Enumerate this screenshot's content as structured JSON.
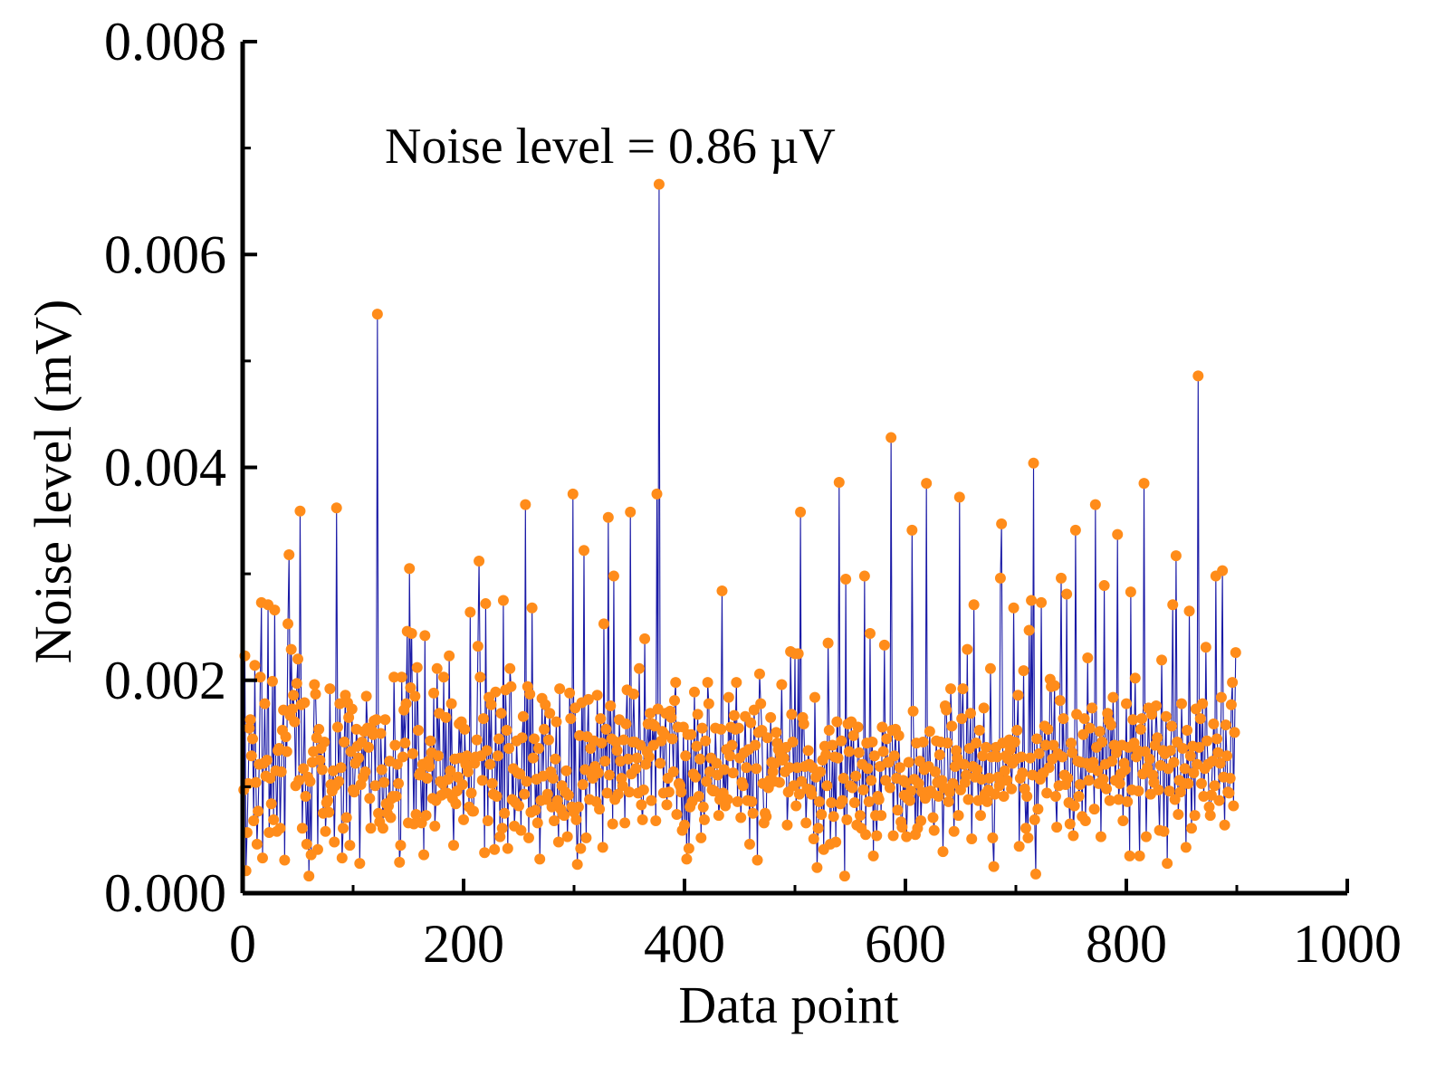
{
  "colors": {
    "line": "#1a1aa6",
    "marker": "#ff8c1a",
    "axis": "#000000"
  },
  "chart_data": {
    "type": "line",
    "title": "",
    "xlabel": "Data point",
    "ylabel": "Noise level (mV)",
    "xlim": [
      0,
      1000
    ],
    "ylim": [
      0,
      0.008
    ],
    "grid": false,
    "legend": "none",
    "x_ticks": [
      0,
      200,
      400,
      600,
      800,
      1000
    ],
    "x_tick_labels": [
      "0",
      "200",
      "400",
      "600",
      "800",
      "1000"
    ],
    "y_ticks": [
      0,
      0.002,
      0.004,
      0.006,
      0.008
    ],
    "y_tick_labels": [
      "0.000",
      "0.002",
      "0.004",
      "0.006",
      "0.008"
    ],
    "annotation": "Noise level = 0.86 µV",
    "series": [
      {
        "name": "Noise level",
        "x_start": 1,
        "x_step": 1,
        "y": [
          0.00097,
          0.00223,
          0.00021,
          0.00057,
          0.00103,
          0.00155,
          0.00163,
          0.00129,
          0.00145,
          0.00068,
          0.00214,
          0.00104,
          0.00046,
          0.00077,
          0.00121,
          0.00203,
          0.00273,
          0.00033,
          0.00122,
          0.00178,
          0.0011,
          0.00125,
          0.00271,
          0.00057,
          0.00108,
          0.00084,
          0.00199,
          0.00069,
          0.00266,
          0.00115,
          0.00058,
          0.00134,
          0.00136,
          0.00061,
          0.00114,
          0.00153,
          0.00172,
          0.00031,
          0.00147,
          0.00133,
          0.00253,
          0.00318,
          0.00167,
          0.00229,
          0.00173,
          0.00186,
          0.00161,
          0.00101,
          0.00197,
          0.0022,
          0.00106,
          0.00359,
          0.00177,
          0.00061,
          0.00117,
          0.00179,
          0.00091,
          0.00046,
          0.00109,
          0.00016,
          0.00105,
          0.00036,
          0.00123,
          0.00133,
          0.00196,
          0.00187,
          0.00146,
          0.00041,
          0.00154,
          0.00125,
          0.00136,
          0.00116,
          0.00075,
          0.00142,
          0.00058,
          0.00085,
          0.00087,
          0.00076,
          0.00192,
          0.00102,
          0.00096,
          0.00115,
          0.00048,
          0.00101,
          0.00362,
          0.00156,
          0.00105,
          0.00178,
          0.00118,
          0.00033,
          0.00061,
          0.00142,
          0.00186,
          0.00071,
          0.00179,
          0.00165,
          0.00045,
          0.00133,
          0.00173,
          0.00097,
          0.00095,
          0.00122,
          0.00154,
          0.00138,
          0.00127,
          0.00028,
          0.00102,
          0.00142,
          0.00109,
          0.00152,
          0.00114,
          0.00185,
          0.00155,
          0.00137,
          0.00089,
          0.00061,
          0.00153,
          0.00149,
          0.00162,
          0.00101,
          0.00163,
          0.00544,
          0.00075,
          0.00067,
          0.0015,
          0.00116,
          0.00061,
          0.00104,
          0.00163,
          0.00084,
          0.00075,
          0.00082,
          0.00124,
          0.00071,
          0.00089,
          0.00091,
          0.00203,
          0.00139,
          0.00091,
          0.00121,
          0.00103,
          0.00029,
          0.00045,
          0.00203,
          0.00128,
          0.00172,
          0.00141,
          0.00178,
          0.00246,
          0.00066,
          0.00305,
          0.00193,
          0.00244,
          0.00131,
          0.00065,
          0.00185,
          0.00074,
          0.00212,
          0.00153,
          0.00111,
          0.00113,
          0.00066,
          0.00121,
          0.00036,
          0.00242,
          0.00073,
          0.00108,
          0.00124,
          0.00119,
          0.00143,
          0.00132,
          0.00089,
          0.00188,
          0.00063,
          0.00087,
          0.00211,
          0.00129,
          0.00169,
          0.00105,
          0.00092,
          0.00103,
          0.00203,
          0.00094,
          0.00165,
          0.00094,
          0.00107,
          0.00223,
          0.00115,
          0.00178,
          0.00089,
          0.00045,
          0.00126,
          0.00084,
          0.00096,
          0.00109,
          0.00159,
          0.00127,
          0.00161,
          0.00102,
          0.00069,
          0.00154,
          0.00121,
          0.00129,
          0.00114,
          0.00081,
          0.00264,
          0.00094,
          0.00077,
          0.00077,
          0.00122,
          0.00128,
          0.00144,
          0.00232,
          0.00312,
          0.00203,
          0.00129,
          0.00106,
          0.00164,
          0.00038,
          0.00272,
          0.00134,
          0.00068,
          0.00184,
          0.00121,
          0.00177,
          0.00103,
          0.00093,
          0.00041,
          0.00189,
          0.00091,
          0.00129,
          0.00145,
          0.00053,
          0.00169,
          0.00061,
          0.00275,
          0.00075,
          0.00191,
          0.00153,
          0.00042,
          0.00136,
          0.00211,
          0.00194,
          0.00088,
          0.00117,
          0.00063,
          0.00085,
          0.00143,
          0.00113,
          0.00082,
          0.00112,
          0.00059,
          0.00146,
          0.00166,
          0.00093,
          0.00365,
          0.00105,
          0.00194,
          0.00052,
          0.00187,
          0.00076,
          0.00268,
          0.00127,
          0.00145,
          0.00078,
          0.00107,
          0.00066,
          0.00136,
          0.00032,
          0.00087,
          0.00183,
          0.0011,
          0.00154,
          0.00177,
          0.00088,
          0.00093,
          0.00144,
          0.00169,
          0.00114,
          0.00081,
          0.00108,
          0.00068,
          0.00126,
          0.00161,
          0.00087,
          0.00048,
          0.00192,
          0.00079,
          0.00101,
          0.00074,
          0.00073,
          0.00095,
          0.00115,
          0.00053,
          0.00092,
          0.00188,
          0.00164,
          0.00081,
          0.00375,
          0.00076,
          0.00174,
          0.00069,
          0.00027,
          0.00081,
          0.00148,
          0.00042,
          0.00179,
          0.00102,
          0.00322,
          0.00116,
          0.00052,
          0.00147,
          0.00182,
          0.00088,
          0.00136,
          0.00111,
          0.00108,
          0.00143,
          0.00119,
          0.00086,
          0.00186,
          0.00113,
          0.00079,
          0.00164,
          0.00141,
          0.00043,
          0.00253,
          0.00124,
          0.00154,
          0.00094,
          0.00353,
          0.00111,
          0.00176,
          0.00145,
          0.00065,
          0.00298,
          0.00088,
          0.00142,
          0.00134,
          0.00093,
          0.00163,
          0.00124,
          0.00108,
          0.00101,
          0.00144,
          0.00066,
          0.00159,
          0.00191,
          0.00126,
          0.00095,
          0.00358,
          0.00112,
          0.00142,
          0.00187,
          0.00142,
          0.00117,
          0.00127,
          0.00094,
          0.00211,
          0.00139,
          0.00083,
          0.00069,
          0.00097,
          0.00239,
          0.00121,
          0.00133,
          0.00159,
          0.00128,
          0.00169,
          0.00087,
          0.00159,
          0.00139,
          0.00157,
          0.00068,
          0.00375,
          0.00173,
          0.00666,
          0.00122,
          0.00143,
          0.00152,
          0.00094,
          0.00149,
          0.00169,
          0.00083,
          0.00108,
          0.00095,
          0.00171,
          0.00165,
          0.00145,
          0.00114,
          0.00181,
          0.00198,
          0.00074,
          0.00156,
          0.00103,
          0.00101,
          0.00095,
          0.00059,
          0.00156,
          0.00064,
          0.00129,
          0.00032,
          0.00149,
          0.00042,
          0.00081,
          0.00149,
          0.00086,
          0.00112,
          0.00189,
          0.00109,
          0.00138,
          0.00168,
          0.00091,
          0.00126,
          0.00052,
          0.00155,
          0.00081,
          0.00069,
          0.00143,
          0.00105,
          0.00198,
          0.00178,
          0.00114,
          0.00127,
          0.00097,
          0.00096,
          0.00096,
          0.00155,
          0.00122,
          0.00111,
          0.00073,
          0.00088,
          0.00154,
          0.00284,
          0.00094,
          0.00116,
          0.00082,
          0.00135,
          0.00088,
          0.00184,
          0.00129,
          0.00156,
          0.00139,
          0.00113,
          0.00167,
          0.00154,
          0.00198,
          0.00086,
          0.00155,
          0.00127,
          0.00071,
          0.00104,
          0.00101,
          0.00132,
          0.00166,
          0.00118,
          0.00087,
          0.00135,
          0.00046,
          0.0016,
          0.00086,
          0.00075,
          0.00172,
          0.00139,
          0.00117,
          0.00031,
          0.00151,
          0.00206,
          0.00178,
          0.00153,
          0.00103,
          0.00066,
          0.00075,
          0.00072,
          0.00146,
          0.00099,
          0.00106,
          0.00165,
          0.00123,
          0.00114,
          0.00105,
          0.00122,
          0.00151,
          0.00141,
          0.00135,
          0.00104,
          0.0013,
          0.00196,
          0.00125,
          0.00127,
          0.00114,
          0.00137,
          0.00064,
          0.00095,
          0.00118,
          0.00227,
          0.00168,
          0.00142,
          0.00101,
          0.00225,
          0.00082,
          0.00118,
          0.00225,
          0.00093,
          0.00358,
          0.00105,
          0.00165,
          0.00159,
          0.00119,
          0.00066,
          0.00098,
          0.00134,
          0.00121,
          0.00097,
          0.00093,
          0.00118,
          0.00051,
          0.00184,
          0.00109,
          0.00024,
          0.00061,
          0.00086,
          0.00114,
          0.00074,
          0.00125,
          0.00041,
          0.00138,
          0.0013,
          0.00101,
          0.00235,
          0.00153,
          0.00046,
          0.00085,
          0.00139,
          0.00072,
          0.00128,
          0.00048,
          0.00161,
          0.00127,
          0.00386,
          0.00084,
          0.00143,
          0.00087,
          0.00108,
          0.00016,
          0.00295,
          0.00069,
          0.00159,
          0.00133,
          0.00101,
          0.00161,
          0.00099,
          0.00148,
          0.00085,
          0.0011,
          0.00064,
          0.00156,
          0.00132,
          0.00073,
          0.00061,
          0.00121,
          0.00097,
          0.00298,
          0.00055,
          0.00141,
          0.00117,
          0.00086,
          0.00244,
          0.00106,
          0.00142,
          0.00035,
          0.00129,
          0.00073,
          0.00054,
          0.00091,
          0.00088,
          0.00119,
          0.00073,
          0.00156,
          0.00133,
          0.00233,
          0.00106,
          0.00145,
          0.00123,
          0.00123,
          0.00099,
          0.00428,
          0.00153,
          0.00054,
          0.00129,
          0.00154,
          0.00108,
          0.00078,
          0.00148,
          0.00118,
          0.00067,
          0.00062,
          0.00106,
          0.00092,
          0.00104,
          0.00053,
          0.00089,
          0.00123,
          0.00087,
          0.00096,
          0.00341,
          0.00171,
          0.00107,
          0.00055,
          0.00141,
          0.00061,
          0.00103,
          0.00124,
          0.00068,
          0.00095,
          0.00142,
          0.00116,
          0.00089,
          0.00385,
          0.00095,
          0.00119,
          0.00152,
          0.00096,
          0.00094,
          0.00071,
          0.00059,
          0.00114,
          0.00143,
          0.00104,
          0.00091,
          0.0013,
          0.00142,
          0.00106,
          0.00039,
          0.00099,
          0.00176,
          0.00172,
          0.00141,
          0.00086,
          0.00095,
          0.00192,
          0.00157,
          0.00103,
          0.00058,
          0.00119,
          0.00134,
          0.00127,
          0.00073,
          0.00372,
          0.00097,
          0.00164,
          0.00192,
          0.00121,
          0.00104,
          0.00111,
          0.00229,
          0.00088,
          0.00136,
          0.00169,
          0.00051,
          0.00119,
          0.00271,
          0.00109,
          0.00141,
          0.00116,
          0.00087,
          0.00153,
          0.00073,
          0.00107,
          0.00129,
          0.00174,
          0.00093,
          0.00137,
          0.00086,
          0.00097,
          0.00108,
          0.00211,
          0.00128,
          0.00052,
          0.00025,
          0.00093,
          0.00137,
          0.00128,
          0.00109,
          0.00101,
          0.00296,
          0.00347,
          0.00141,
          0.00091,
          0.00115,
          0.00129,
          0.00106,
          0.00126,
          0.00144,
          0.00135,
          0.00098,
          0.00122,
          0.00268,
          0.00142,
          0.00126,
          0.00153,
          0.00186,
          0.00044,
          0.00108,
          0.00128,
          0.00113,
          0.00209,
          0.00098,
          0.00061,
          0.00091,
          0.00052,
          0.00247,
          0.00127,
          0.00275,
          0.00111,
          0.00404,
          0.00069,
          0.00018,
          0.00145,
          0.00079,
          0.00131,
          0.00107,
          0.00273,
          0.00112,
          0.00113,
          0.00157,
          0.00139,
          0.00094,
          0.00154,
          0.00118,
          0.00201,
          0.00194,
          0.00126,
          0.00139,
          0.00195,
          0.00091,
          0.00062,
          0.00131,
          0.00101,
          0.00181,
          0.00296,
          0.00128,
          0.00164,
          0.00111,
          0.00102,
          0.00281,
          0.00108,
          0.00085,
          0.00065,
          0.00141,
          0.00132,
          0.00054,
          0.00082,
          0.00341,
          0.00168,
          0.00124,
          0.00091,
          0.00102,
          0.00123,
          0.00072,
          0.00149,
          0.00164,
          0.00068,
          0.00122,
          0.00221,
          0.00106,
          0.00155,
          0.00118,
          0.00174,
          0.00123,
          0.00079,
          0.00365,
          0.00137,
          0.00115,
          0.00103,
          0.00152,
          0.00053,
          0.00142,
          0.00107,
          0.00289,
          0.00121,
          0.00098,
          0.00169,
          0.00162,
          0.00087,
          0.00158,
          0.00124,
          0.00184,
          0.00139,
          0.00106,
          0.00132,
          0.00337,
          0.00088,
          0.00103,
          0.00112,
          0.00139,
          0.00068,
          0.00122,
          0.00116,
          0.00178,
          0.00086,
          0.00137,
          0.00035,
          0.00283,
          0.00097,
          0.00163,
          0.00141,
          0.00202,
          0.00128,
          0.00134,
          0.00096,
          0.00035,
          0.00154,
          0.00164,
          0.00112,
          0.00385,
          0.00133,
          0.00053,
          0.00118,
          0.00174,
          0.00126,
          0.00093,
          0.00168,
          0.00111,
          0.00104,
          0.00139,
          0.00176,
          0.00146,
          0.00097,
          0.00059,
          0.0012,
          0.00219,
          0.00134,
          0.00058,
          0.00131,
          0.00166,
          0.00028,
          0.00117,
          0.00096,
          0.00134,
          0.00157,
          0.00271,
          0.00123,
          0.00088,
          0.00317,
          0.00142,
          0.00074,
          0.00106,
          0.00095,
          0.00178,
          0.00136,
          0.00103,
          0.00117,
          0.00043,
          0.00153,
          0.00103,
          0.00265,
          0.00129,
          0.00061,
          0.00138,
          0.00113,
          0.00073,
          0.00173,
          0.00121,
          0.00486,
          0.00137,
          0.00164,
          0.00103,
          0.00178,
          0.00091,
          0.00117,
          0.00231,
          0.00143,
          0.00121,
          0.00081,
          0.00073,
          0.00092,
          0.00124,
          0.00159,
          0.00101,
          0.00298,
          0.00145,
          0.00132,
          0.00087,
          0.00122,
          0.00184,
          0.00303,
          0.00109,
          0.00064,
          0.00158,
          0.00129,
          0.00095,
          0.00094,
          0.00108,
          0.00177,
          0.00198,
          0.00082,
          0.00151,
          0.00226
        ]
      }
    ]
  }
}
